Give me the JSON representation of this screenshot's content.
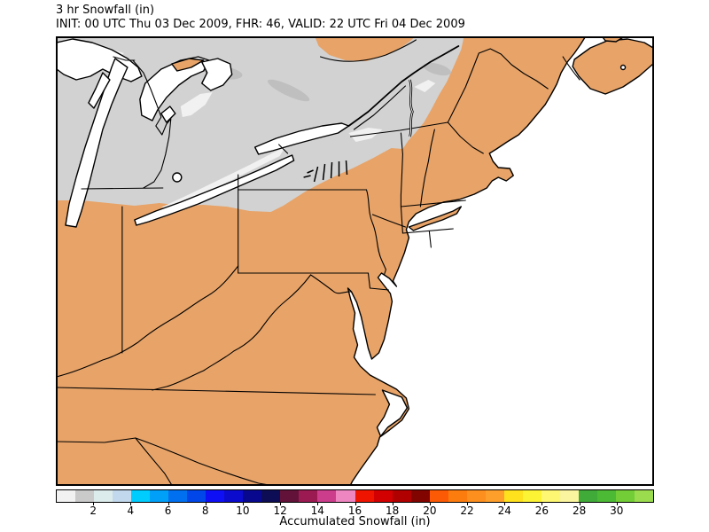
{
  "header": {
    "title": "3 hr Snowfall (in)",
    "subtitle": "INIT: 00 UTC Thu 03 Dec 2009, FHR: 46, VALID: 22 UTC Fri 04 Dec 2009"
  },
  "map": {
    "colors": {
      "land": "#e7a368",
      "water": "#ffffff",
      "snow_light": "#d2d2d2",
      "snow_trace": "#f1f1f1",
      "snow_heavier": "#bfbfbf",
      "outline": "#000000"
    }
  },
  "colorbar": {
    "label": "Accumulated Snowfall (in)",
    "min": 0,
    "max": 32,
    "tick_values": [
      2,
      4,
      6,
      8,
      10,
      12,
      14,
      16,
      18,
      20,
      22,
      24,
      26,
      28,
      30
    ],
    "cell_colors": [
      "#f2f2f2",
      "#cacaca",
      "#dcebeb",
      "#c2d8ec",
      "#00ccfe",
      "#00a0f8",
      "#0070f0",
      "#0046e8",
      "#0f0ff5",
      "#0b0bcd",
      "#08088f",
      "#0d0d56",
      "#621238",
      "#9c1a52",
      "#cc3d8c",
      "#ee86c2",
      "#ee1400",
      "#d20000",
      "#b00000",
      "#820400",
      "#fc5a04",
      "#fd7c0e",
      "#fd8f1e",
      "#fe9f2c",
      "#ffe11e",
      "#fcf335",
      "#fdf772",
      "#faf59e",
      "#41ab3a",
      "#4cba34",
      "#73cd37",
      "#9bdc4e"
    ]
  },
  "chart_data": {
    "type": "heatmap",
    "title": "3 hr Snowfall (in)",
    "subtitle": "INIT: 00 UTC Thu 03 Dec 2009, FHR: 46, VALID: 22 UTC Fri 04 Dec 2009",
    "legend": {
      "label": "Accumulated Snowfall (in)",
      "bin_size_inches": 1,
      "range": [
        0,
        32
      ],
      "tick_values": [
        2,
        4,
        6,
        8,
        10,
        12,
        14,
        16,
        18,
        20,
        22,
        24,
        26,
        28,
        30
      ],
      "position": "bottom"
    },
    "depicted": "Light (0-2 in, white/gray bins) 3-hour snowfall shading over Michigan, Ontario, Quebec and upstate New York; no snowfall (land tan) over the Mid-Atlantic and Southeast US"
  }
}
